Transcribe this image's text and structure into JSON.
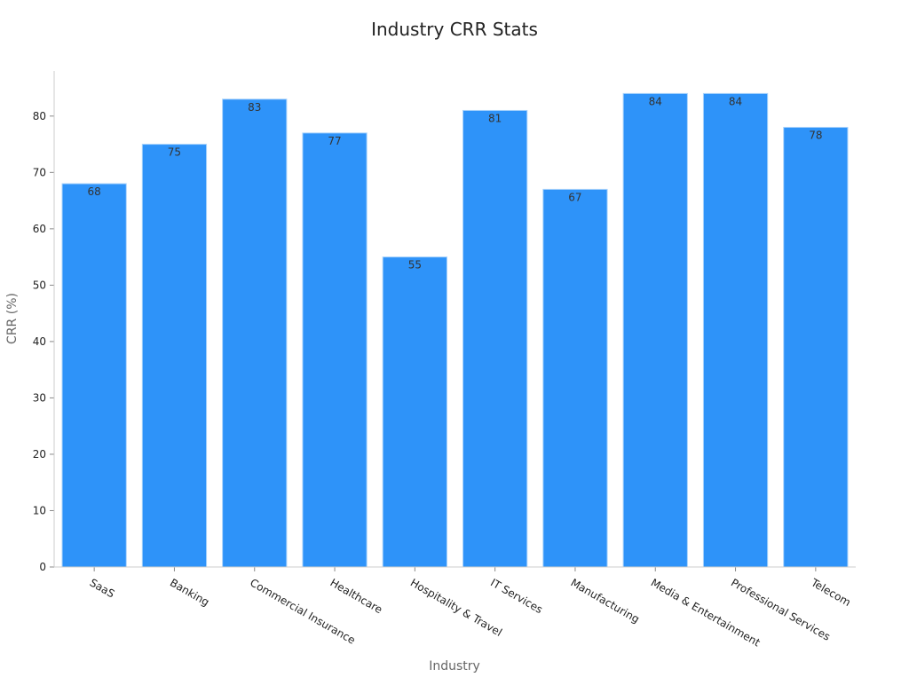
{
  "chart_data": {
    "type": "bar",
    "title": "Industry CRR Stats",
    "xlabel": "Industry",
    "ylabel": "CRR (%)",
    "categories": [
      "SaaS",
      "Banking",
      "Commercial Insurance",
      "Healthcare",
      "Hospitality & Travel",
      "IT Services",
      "Manufacturing",
      "Media & Entertainment",
      "Professional Services",
      "Telecom"
    ],
    "values": [
      68,
      75,
      83,
      77,
      55,
      81,
      67,
      84,
      84,
      78
    ],
    "ylim": [
      0,
      88
    ],
    "yticks": [
      0,
      10,
      20,
      30,
      40,
      50,
      60,
      70,
      80
    ],
    "grid": false,
    "legend": "none",
    "colors": {
      "bar": "#2e93f9",
      "bar_edge": "#a8d2fb"
    }
  }
}
